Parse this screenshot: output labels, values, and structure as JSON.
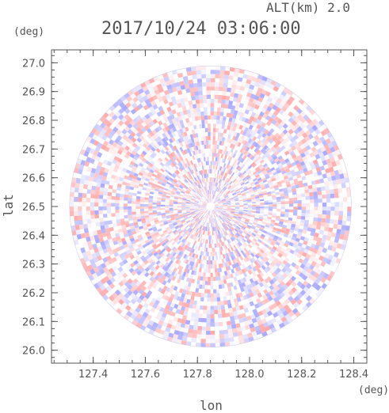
{
  "header": {
    "altitude_label": "ALT(km)  2.0",
    "timestamp": "2017/10/24 03:06:00"
  },
  "chart_data": {
    "type": "heatmap",
    "title": "2017/10/24 03:06:00",
    "xlabel": "lon",
    "ylabel": "lat",
    "xunit": "(deg)",
    "yunit": "(deg)",
    "xlim": [
      127.24,
      128.45
    ],
    "ylim": [
      25.955,
      27.045
    ],
    "xticks": [
      "127.4",
      "127.6",
      "127.8",
      "128.0",
      "128.2",
      "128.4"
    ],
    "yticks": [
      "26.0",
      "26.1",
      "26.2",
      "26.3",
      "26.4",
      "26.5",
      "26.6",
      "26.7",
      "26.8",
      "26.9",
      "27.0"
    ],
    "center": {
      "lon": 127.85,
      "lat": 26.5
    },
    "radius_deg_lat": 0.49,
    "field": "diverging red-blue polar radar pattern, values mostly near zero",
    "colors": {
      "positive": "#ffb6b6",
      "negative": "#b6b6ff",
      "neutral": "#ffffff",
      "axis": "#555555"
    }
  }
}
